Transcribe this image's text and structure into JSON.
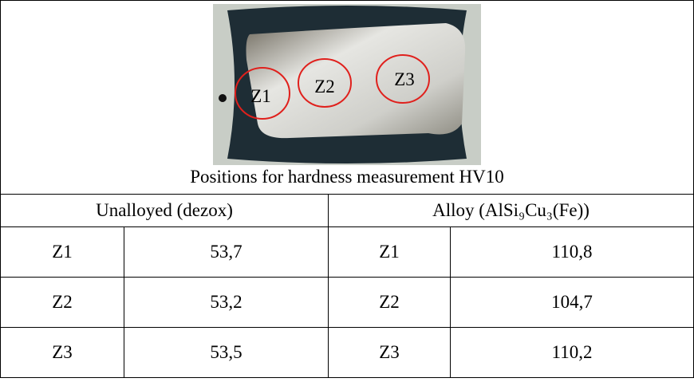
{
  "figure": {
    "labels": [
      "Z1",
      "Z2",
      "Z3"
    ],
    "caption": "Positions for hardness measurement HV10"
  },
  "table": {
    "groups": [
      "Unalloyed (dezox)",
      "Alloy (AlSi₉Cu₃(Fe))"
    ],
    "rows": [
      [
        "Z1",
        "53,7",
        "Z1",
        "110,8"
      ],
      [
        "Z2",
        "53,2",
        "Z2",
        "104,7"
      ],
      [
        "Z3",
        "53,5",
        "Z3",
        "110,2"
      ]
    ]
  }
}
